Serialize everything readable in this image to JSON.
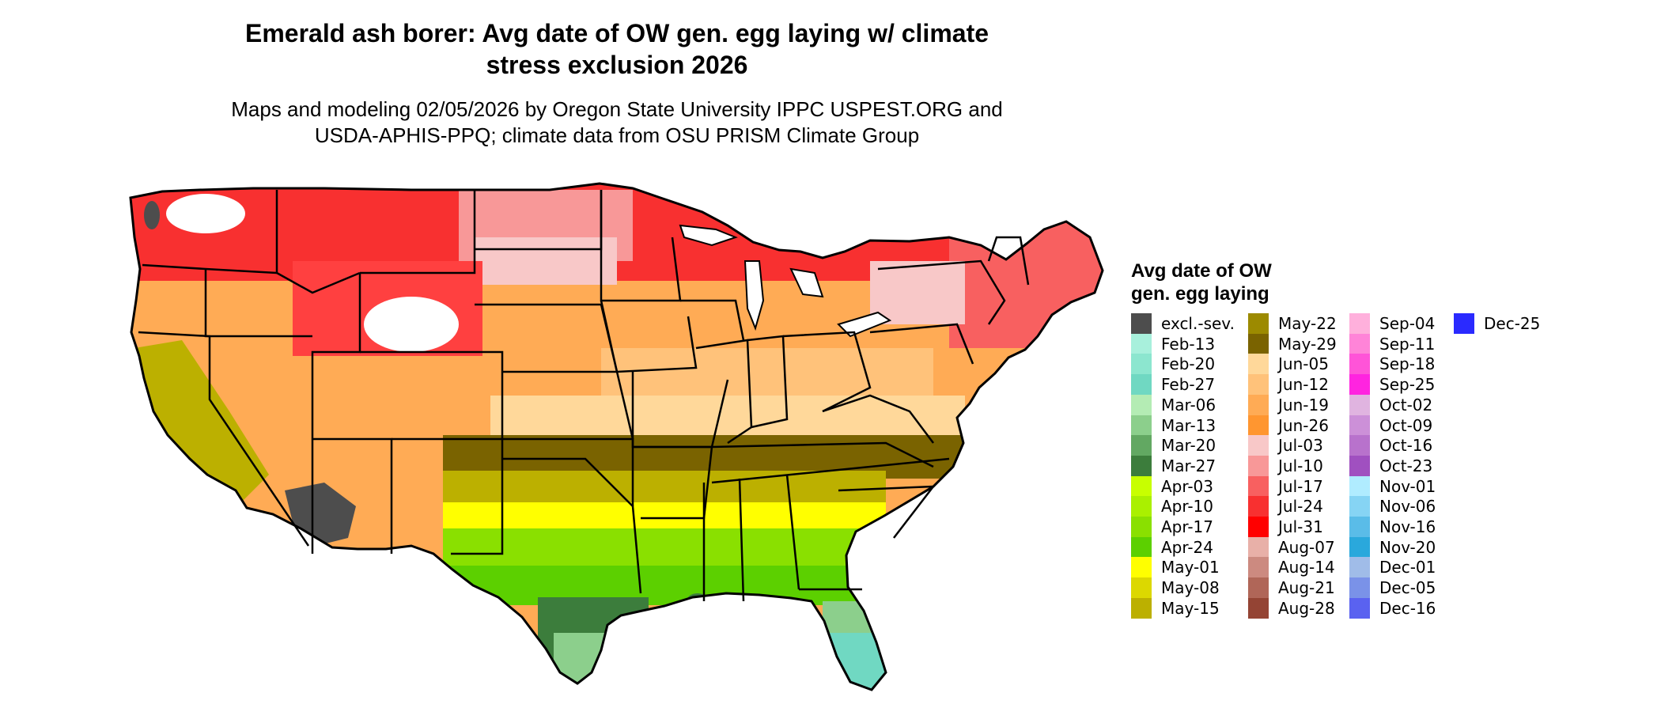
{
  "title_line1": "Emerald ash borer: Avg date of OW gen. egg laying w/ climate",
  "title_line2": "stress exclusion 2026",
  "subtitle_line1": "Maps and modeling 02/05/2026 by Oregon State University IPPC USPEST.ORG and",
  "subtitle_line2": "USDA-APHIS-PPQ; climate data from OSU PRISM Climate Group",
  "legend": {
    "title_line1": "Avg date of OW",
    "title_line2": "gen. egg laying",
    "items": [
      {
        "label": "excl.-sev.",
        "color": "#4d4d4d"
      },
      {
        "label": "Feb-13",
        "color": "#a8f0dc"
      },
      {
        "label": "Feb-20",
        "color": "#8ce6cf"
      },
      {
        "label": "Feb-27",
        "color": "#70d8c2"
      },
      {
        "label": "Mar-06",
        "color": "#b4ecb4"
      },
      {
        "label": "Mar-13",
        "color": "#8ccf8c"
      },
      {
        "label": "Mar-20",
        "color": "#62a862"
      },
      {
        "label": "Mar-27",
        "color": "#3c7d3c"
      },
      {
        "label": "Apr-03",
        "color": "#c8ff00"
      },
      {
        "label": "Apr-10",
        "color": "#aaf000"
      },
      {
        "label": "Apr-17",
        "color": "#8ae000"
      },
      {
        "label": "Apr-24",
        "color": "#5cd000"
      },
      {
        "label": "May-01",
        "color": "#ffff00"
      },
      {
        "label": "May-08",
        "color": "#dcd800"
      },
      {
        "label": "May-15",
        "color": "#bcb000"
      },
      {
        "label": "May-22",
        "color": "#9c8a00"
      },
      {
        "label": "May-29",
        "color": "#7a6300"
      },
      {
        "label": "Jun-05",
        "color": "#ffd89a"
      },
      {
        "label": "Jun-12",
        "color": "#ffc27a"
      },
      {
        "label": "Jun-19",
        "color": "#ffab55"
      },
      {
        "label": "Jun-26",
        "color": "#ff9630"
      },
      {
        "label": "Jul-03",
        "color": "#f8c8c8"
      },
      {
        "label": "Jul-10",
        "color": "#f89898"
      },
      {
        "label": "Jul-17",
        "color": "#f86060"
      },
      {
        "label": "Jul-24",
        "color": "#f83030"
      },
      {
        "label": "Jul-31",
        "color": "#ff0000"
      },
      {
        "label": "Aug-07",
        "color": "#e8b0a8"
      },
      {
        "label": "Aug-14",
        "color": "#cc8a80"
      },
      {
        "label": "Aug-21",
        "color": "#b06658"
      },
      {
        "label": "Aug-28",
        "color": "#944434"
      },
      {
        "label": "Sep-04",
        "color": "#ffb0dc"
      },
      {
        "label": "Sep-11",
        "color": "#ff84d8"
      },
      {
        "label": "Sep-18",
        "color": "#ff54d8"
      },
      {
        "label": "Sep-25",
        "color": "#ff24e0"
      },
      {
        "label": "Oct-02",
        "color": "#e0b4e0"
      },
      {
        "label": "Oct-09",
        "color": "#cc90d8"
      },
      {
        "label": "Oct-16",
        "color": "#b872cc"
      },
      {
        "label": "Oct-23",
        "color": "#a050c0"
      },
      {
        "label": "Nov-01",
        "color": "#b0ecff"
      },
      {
        "label": "Nov-06",
        "color": "#86d4f4"
      },
      {
        "label": "Nov-16",
        "color": "#5abce8"
      },
      {
        "label": "Nov-20",
        "color": "#2aa8dc"
      },
      {
        "label": "Dec-01",
        "color": "#a0bce8"
      },
      {
        "label": "Dec-05",
        "color": "#7a92e8"
      },
      {
        "label": "Dec-16",
        "color": "#5a62f0"
      },
      {
        "label": "Dec-25",
        "color": "#2a2aff"
      }
    ]
  }
}
